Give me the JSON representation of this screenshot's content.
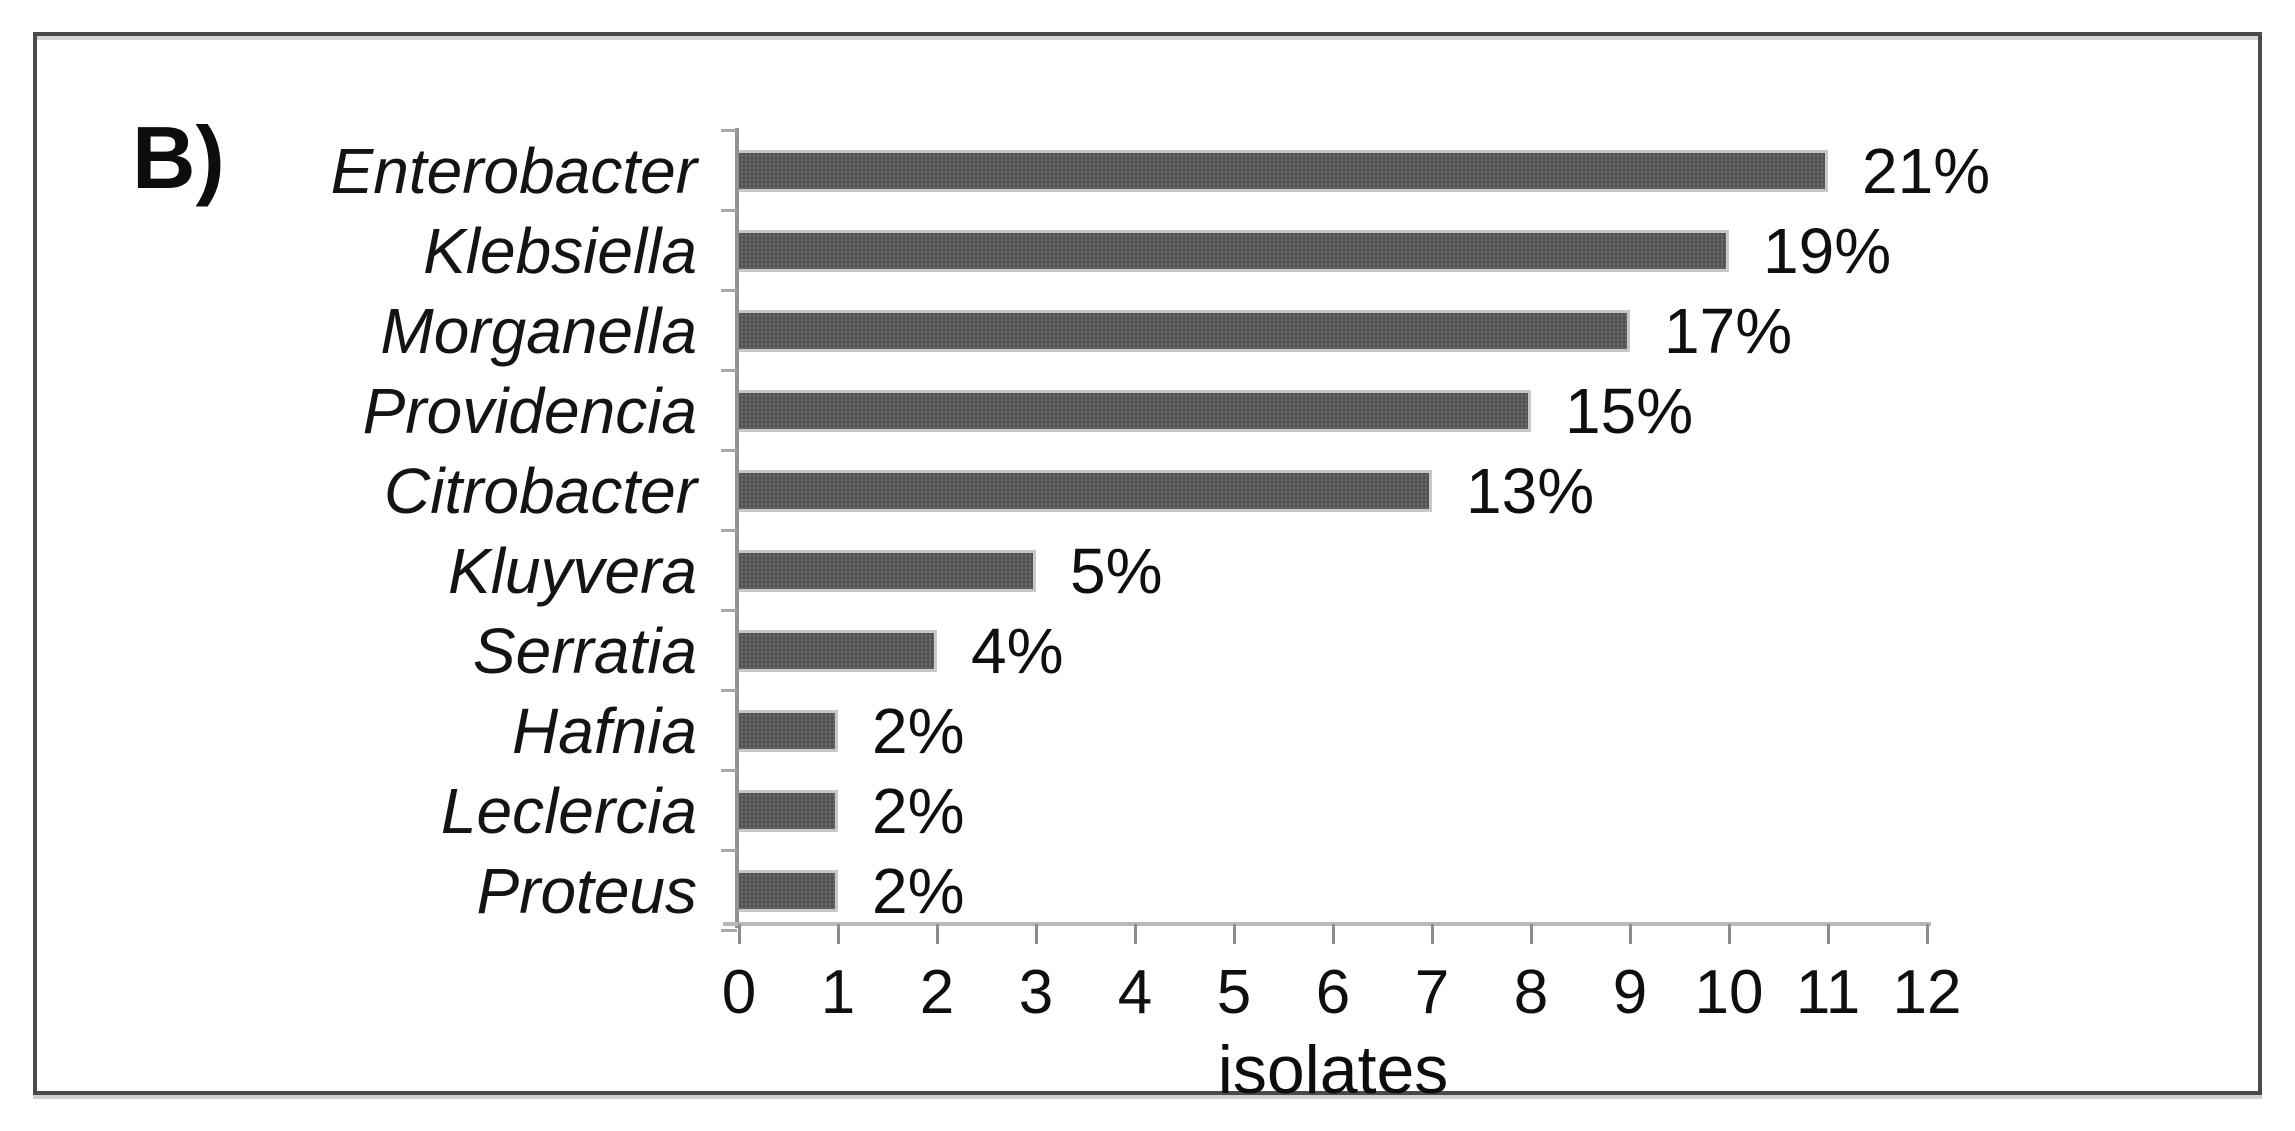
{
  "figure": {
    "panel_label": "B)"
  },
  "chart_data": {
    "type": "bar",
    "orientation": "horizontal",
    "title": "",
    "xlabel": "isolates",
    "ylabel": "",
    "xlim": [
      0,
      12
    ],
    "xticks": [
      "0",
      "1",
      "2",
      "3",
      "4",
      "5",
      "6",
      "7",
      "8",
      "9",
      "10",
      "11",
      "12"
    ],
    "grid": false,
    "legend": false,
    "categories": [
      "Enterobacter",
      "Klebsiella",
      "Morganella",
      "Providencia",
      "Citrobacter",
      "Kluyvera",
      "Serratia",
      "Hafnia",
      "Leclercia",
      "Proteus"
    ],
    "values": [
      11,
      10,
      9,
      8,
      7,
      3,
      2,
      1,
      1,
      1
    ],
    "value_labels": [
      "21%",
      "19%",
      "17%",
      "15%",
      "13%",
      "5%",
      "4%",
      "2%",
      "2%",
      "2%"
    ],
    "category_style": "italic",
    "bar_color": "#5e5e5e",
    "bar_edge_color": "#c8c8c8",
    "axis_color": "#919191",
    "text_color": "#111111"
  }
}
